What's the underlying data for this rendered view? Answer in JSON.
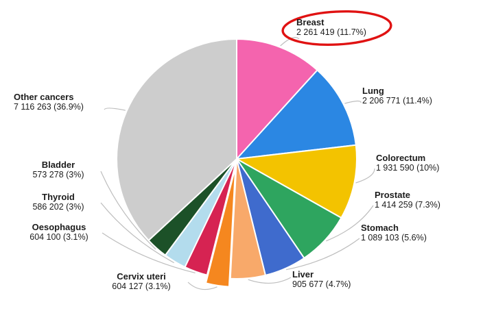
{
  "figure": {
    "background": "#ffffff",
    "annotation": {
      "shape": "hand-drawn red ellipse",
      "color": "#e01212",
      "highlights_slice": "Breast"
    }
  },
  "chart_data": {
    "type": "pie",
    "start_angle_deg": 0,
    "direction": "clockwise",
    "legend_position": "callout-labels-around-pie",
    "slices": [
      {
        "name": "Breast",
        "value": 2261419,
        "pct": 11.7,
        "label_line2": "2 261 419 (11.7%)",
        "color": "#f464ae",
        "circled": true
      },
      {
        "name": "Lung",
        "value": 2206771,
        "pct": 11.4,
        "label_line2": "2 206 771 (11.4%)",
        "color": "#2b87e3"
      },
      {
        "name": "Colorectum",
        "value": 1931590,
        "pct": 10,
        "label_line2": "1 931 590 (10%)",
        "color": "#f3c300"
      },
      {
        "name": "Prostate",
        "value": 1414259,
        "pct": 7.3,
        "label_line2": "1 414 259 (7.3%)",
        "color": "#2ea55f"
      },
      {
        "name": "Stomach",
        "value": 1089103,
        "pct": 5.6,
        "label_line2": "1 089 103 (5.6%)",
        "color": "#3f6bcd"
      },
      {
        "name": "Liver",
        "value": 905677,
        "pct": 4.7,
        "label_line2": "905 677 (4.7%)",
        "color": "#f8a96a"
      },
      {
        "name": "Cervix uteri",
        "value": 604127,
        "pct": 3.1,
        "label_line2": "604 127 (3.1%)",
        "color": "#f5871f",
        "exploded": true
      },
      {
        "name": "Oesophagus",
        "value": 604100,
        "pct": 3.1,
        "label_line2": "604 100 (3.1%)",
        "color": "#d62352"
      },
      {
        "name": "Thyroid",
        "value": 586202,
        "pct": 3,
        "label_line2": "586 202 (3%)",
        "color": "#b3dced"
      },
      {
        "name": "Bladder",
        "value": 573278,
        "pct": 3,
        "label_line2": "573 278 (3%)",
        "color": "#1c5128"
      },
      {
        "name": "Other cancers",
        "value": 7116263,
        "pct": 36.9,
        "label_line2": "7 116 263 (36.9%)",
        "color": "#cdcdcd"
      }
    ]
  }
}
